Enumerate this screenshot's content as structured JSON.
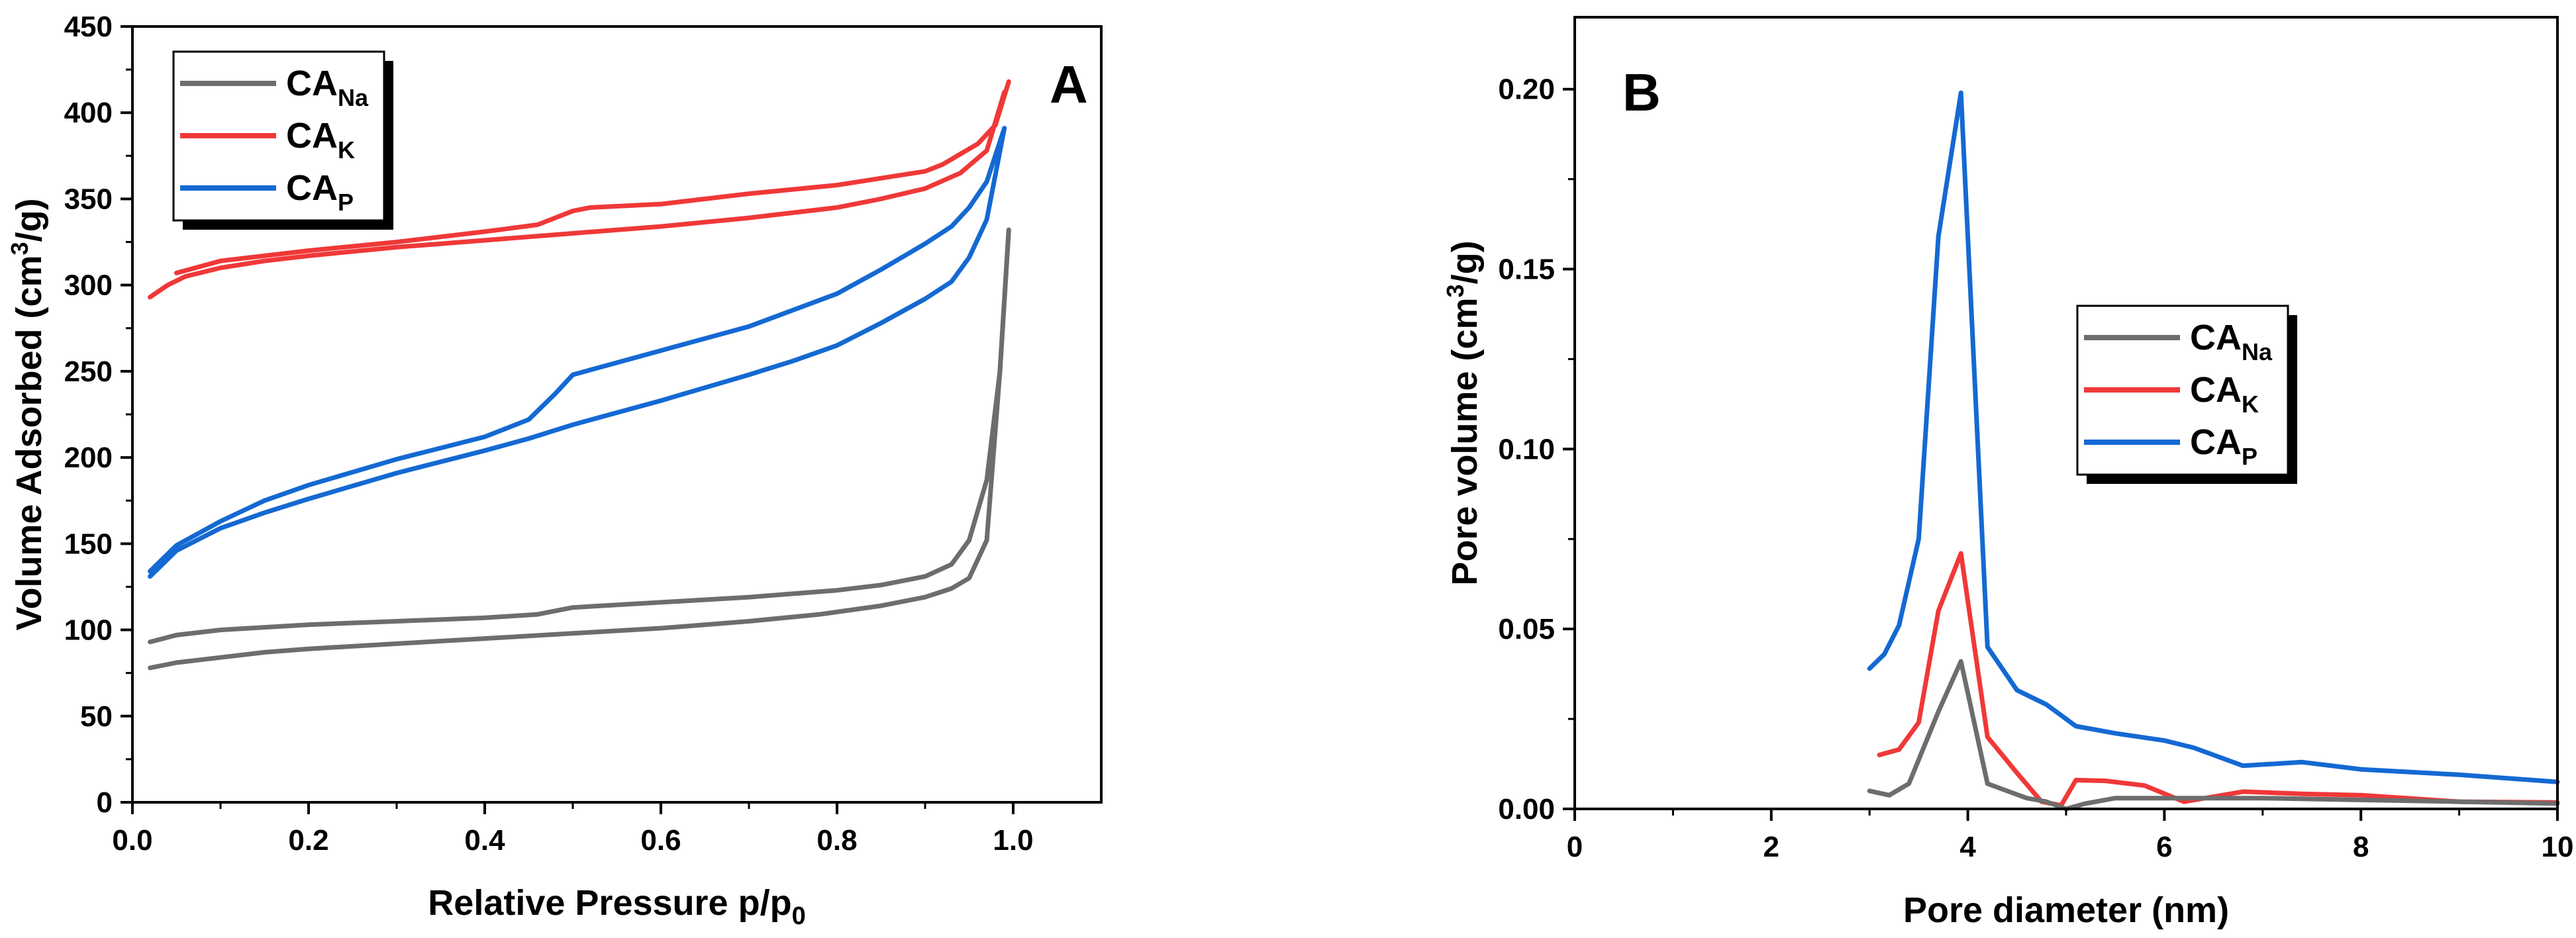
{
  "colors": {
    "CA_Na": "#6d6d6d",
    "CA_K": "#f03838",
    "CA_P": "#1469d2",
    "axis": "#000000"
  },
  "chart_data": [
    {
      "id": "A",
      "type": "line",
      "panel_label": "A",
      "xlabel_main": "Relative Pressure p/p",
      "xlabel_sub": "0",
      "ylabel_prefix": "Volume Adsorbed (cm",
      "ylabel_sup": "3",
      "ylabel_suffix": "/g)",
      "xlim": [
        0,
        1.1
      ],
      "ylim": [
        0,
        450
      ],
      "xticks": [
        0.0,
        0.2,
        0.4,
        0.6,
        0.8,
        1.0
      ],
      "xtick_labels": [
        "0.0",
        "0.2",
        "0.4",
        "0.6",
        "0.8",
        "1.0"
      ],
      "yticks": [
        0,
        50,
        100,
        150,
        200,
        250,
        300,
        350,
        400,
        450
      ],
      "ytick_labels": [
        "0",
        "50",
        "100",
        "150",
        "200",
        "250",
        "300",
        "350",
        "400",
        "450"
      ],
      "legend": [
        {
          "key": "CA_Na",
          "label": "CA",
          "sub": "Na"
        },
        {
          "key": "CA_K",
          "label": "CA",
          "sub": "K"
        },
        {
          "key": "CA_P",
          "label": "CA",
          "sub": "P"
        }
      ],
      "series": [
        {
          "name": "CA_Na adsorption",
          "key": "CA_Na",
          "x": [
            0.02,
            0.05,
            0.1,
            0.15,
            0.2,
            0.3,
            0.4,
            0.5,
            0.6,
            0.7,
            0.78,
            0.85,
            0.9,
            0.93,
            0.95,
            0.97,
            0.985,
            0.995
          ],
          "y": [
            78,
            81,
            84,
            87,
            89,
            92,
            95,
            98,
            101,
            105,
            109,
            114,
            119,
            124,
            130,
            152,
            250,
            332
          ]
        },
        {
          "name": "CA_Na desorption",
          "key": "CA_Na",
          "x": [
            0.995,
            0.985,
            0.97,
            0.95,
            0.93,
            0.9,
            0.85,
            0.8,
            0.7,
            0.6,
            0.5,
            0.46,
            0.4,
            0.3,
            0.2,
            0.1,
            0.05,
            0.02
          ],
          "y": [
            332,
            250,
            187,
            152,
            138,
            131,
            126,
            123,
            119,
            116,
            113,
            109,
            107,
            105,
            103,
            100,
            97,
            93
          ]
        },
        {
          "name": "CA_K adsorption",
          "key": "CA_K",
          "x": [
            0.02,
            0.04,
            0.06,
            0.1,
            0.15,
            0.2,
            0.3,
            0.4,
            0.5,
            0.6,
            0.7,
            0.8,
            0.85,
            0.9,
            0.94,
            0.97,
            0.99
          ],
          "y": [
            293,
            300,
            305,
            310,
            314,
            317,
            322,
            326,
            330,
            334,
            339,
            345,
            350,
            356,
            365,
            378,
            412
          ]
        },
        {
          "name": "CA_K desorption",
          "key": "CA_K",
          "x": [
            0.995,
            0.98,
            0.96,
            0.94,
            0.92,
            0.9,
            0.85,
            0.8,
            0.7,
            0.6,
            0.52,
            0.5,
            0.46,
            0.4,
            0.3,
            0.2,
            0.1,
            0.05
          ],
          "y": [
            418,
            393,
            382,
            376,
            370,
            366,
            362,
            358,
            353,
            347,
            345,
            343,
            335,
            331,
            325,
            320,
            314,
            307
          ]
        },
        {
          "name": "CA_P adsorption",
          "key": "CA_P",
          "x": [
            0.02,
            0.05,
            0.1,
            0.15,
            0.2,
            0.3,
            0.4,
            0.45,
            0.5,
            0.6,
            0.7,
            0.75,
            0.8,
            0.85,
            0.9,
            0.93,
            0.95,
            0.97,
            0.99
          ],
          "y": [
            131,
            146,
            159,
            168,
            176,
            191,
            204,
            211,
            219,
            233,
            248,
            256,
            265,
            278,
            292,
            302,
            316,
            338,
            391
          ]
        },
        {
          "name": "CA_P desorption",
          "key": "CA_P",
          "x": [
            0.99,
            0.97,
            0.95,
            0.93,
            0.9,
            0.85,
            0.8,
            0.7,
            0.6,
            0.5,
            0.48,
            0.45,
            0.4,
            0.3,
            0.2,
            0.15,
            0.1,
            0.05,
            0.02
          ],
          "y": [
            391,
            360,
            345,
            334,
            324,
            309,
            295,
            276,
            262,
            248,
            237,
            222,
            212,
            199,
            184,
            175,
            163,
            149,
            134
          ]
        }
      ]
    },
    {
      "id": "B",
      "type": "line",
      "panel_label": "B",
      "xlabel_main": "Pore diameter (nm)",
      "ylabel_prefix": "Pore volume (cm",
      "ylabel_sup": "3",
      "ylabel_suffix": "/g)",
      "xlim": [
        0,
        10
      ],
      "ylim": [
        0,
        0.22
      ],
      "xticks": [
        0,
        2,
        4,
        6,
        8,
        10
      ],
      "xtick_labels": [
        "0",
        "2",
        "4",
        "6",
        "8",
        "10"
      ],
      "yticks": [
        0,
        0.05,
        0.1,
        0.15,
        0.2
      ],
      "ytick_labels": [
        "0.00",
        "0.05",
        "0.10",
        "0.15",
        "0.20"
      ],
      "legend": [
        {
          "key": "CA_Na",
          "label": "CA",
          "sub": "Na"
        },
        {
          "key": "CA_K",
          "label": "CA",
          "sub": "K"
        },
        {
          "key": "CA_P",
          "label": "CA",
          "sub": "P"
        }
      ],
      "series": [
        {
          "name": "CA_P",
          "key": "CA_P",
          "x": [
            3.0,
            3.15,
            3.3,
            3.5,
            3.7,
            3.93,
            4.2,
            4.5,
            4.8,
            5.1,
            5.5,
            6.0,
            6.3,
            6.8,
            7.4,
            8.0,
            9.0,
            10.0
          ],
          "y": [
            0.039,
            0.043,
            0.051,
            0.075,
            0.159,
            0.199,
            0.045,
            0.033,
            0.029,
            0.023,
            0.021,
            0.019,
            0.017,
            0.012,
            0.013,
            0.011,
            0.0095,
            0.0075
          ]
        },
        {
          "name": "CA_K",
          "key": "CA_K",
          "x": [
            3.1,
            3.3,
            3.5,
            3.7,
            3.93,
            4.2,
            4.5,
            4.75,
            4.95,
            5.1,
            5.4,
            5.8,
            6.2,
            6.8,
            7.4,
            8.0,
            9.0,
            10.0
          ],
          "y": [
            0.015,
            0.0165,
            0.024,
            0.055,
            0.071,
            0.02,
            0.01,
            0.002,
            0.001,
            0.008,
            0.0078,
            0.0065,
            0.002,
            0.0048,
            0.0042,
            0.0038,
            0.002,
            0.0018
          ]
        },
        {
          "name": "CA_Na",
          "key": "CA_Na",
          "x": [
            3.0,
            3.2,
            3.4,
            3.7,
            3.93,
            4.2,
            4.6,
            4.8,
            5.0,
            5.2,
            5.5,
            6.0,
            6.5,
            7.0,
            8.0,
            9.0,
            10.0
          ],
          "y": [
            0.005,
            0.0038,
            0.007,
            0.027,
            0.041,
            0.007,
            0.003,
            0.002,
            0.0,
            0.0015,
            0.003,
            0.003,
            0.003,
            0.003,
            0.0025,
            0.002,
            0.0015
          ]
        }
      ]
    }
  ]
}
